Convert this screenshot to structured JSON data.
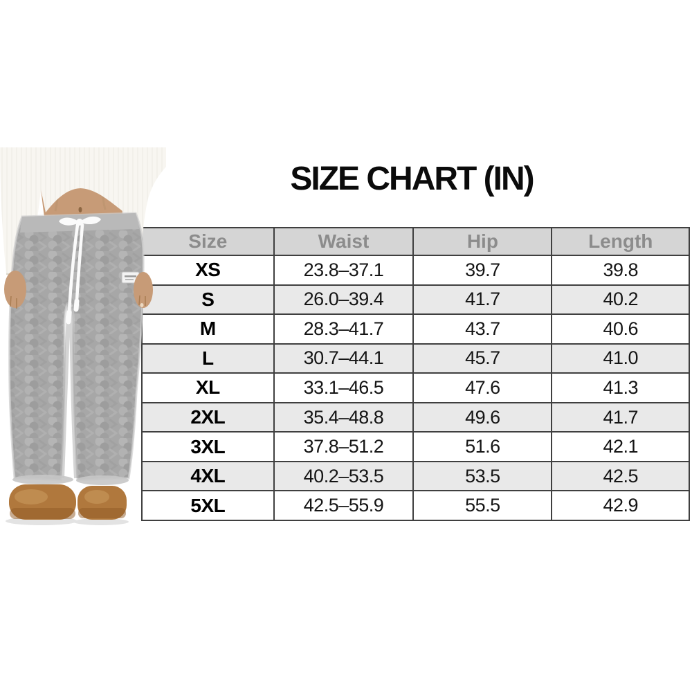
{
  "title": "SIZE CHART (IN)",
  "chart_data": {
    "type": "table",
    "title": "SIZE CHART (IN)",
    "unit": "inches",
    "columns": [
      "Size",
      "Waist",
      "Hip",
      "Length"
    ],
    "rows": [
      [
        "XS",
        "23.8–37.1",
        "39.7",
        "39.8"
      ],
      [
        "S",
        "26.0–39.4",
        "41.7",
        "40.2"
      ],
      [
        "M",
        "28.3–41.7",
        "43.7",
        "40.6"
      ],
      [
        "L",
        "30.7–44.1",
        "45.7",
        "41.0"
      ],
      [
        "XL",
        "33.1–46.5",
        "47.6",
        "41.3"
      ],
      [
        "2XL",
        "35.4–48.8",
        "49.6",
        "41.7"
      ],
      [
        "3XL",
        "37.8–51.2",
        "51.6",
        "42.1"
      ],
      [
        "4XL",
        "40.2–53.5",
        "53.5",
        "42.5"
      ],
      [
        "5XL",
        "42.5–55.9",
        "55.5",
        "42.9"
      ]
    ],
    "layout": {
      "header_bg": "#d5d5d5",
      "header_text": "#8c8c8c",
      "alt_row_bg": "#e9e9e9",
      "row_bg": "#ffffff",
      "border": "#3f3f3f",
      "grid": true
    }
  },
  "photo": {
    "colors": {
      "pants": "#a7a7a7",
      "pants_band": "#b9b9b9",
      "top": "#f8f6f1",
      "skin": "#c79b77",
      "drawstring": "#fbfbfb",
      "boots": "#b0783d",
      "boots_sole": "#8f5a26",
      "label": "#f3f3f3"
    }
  }
}
